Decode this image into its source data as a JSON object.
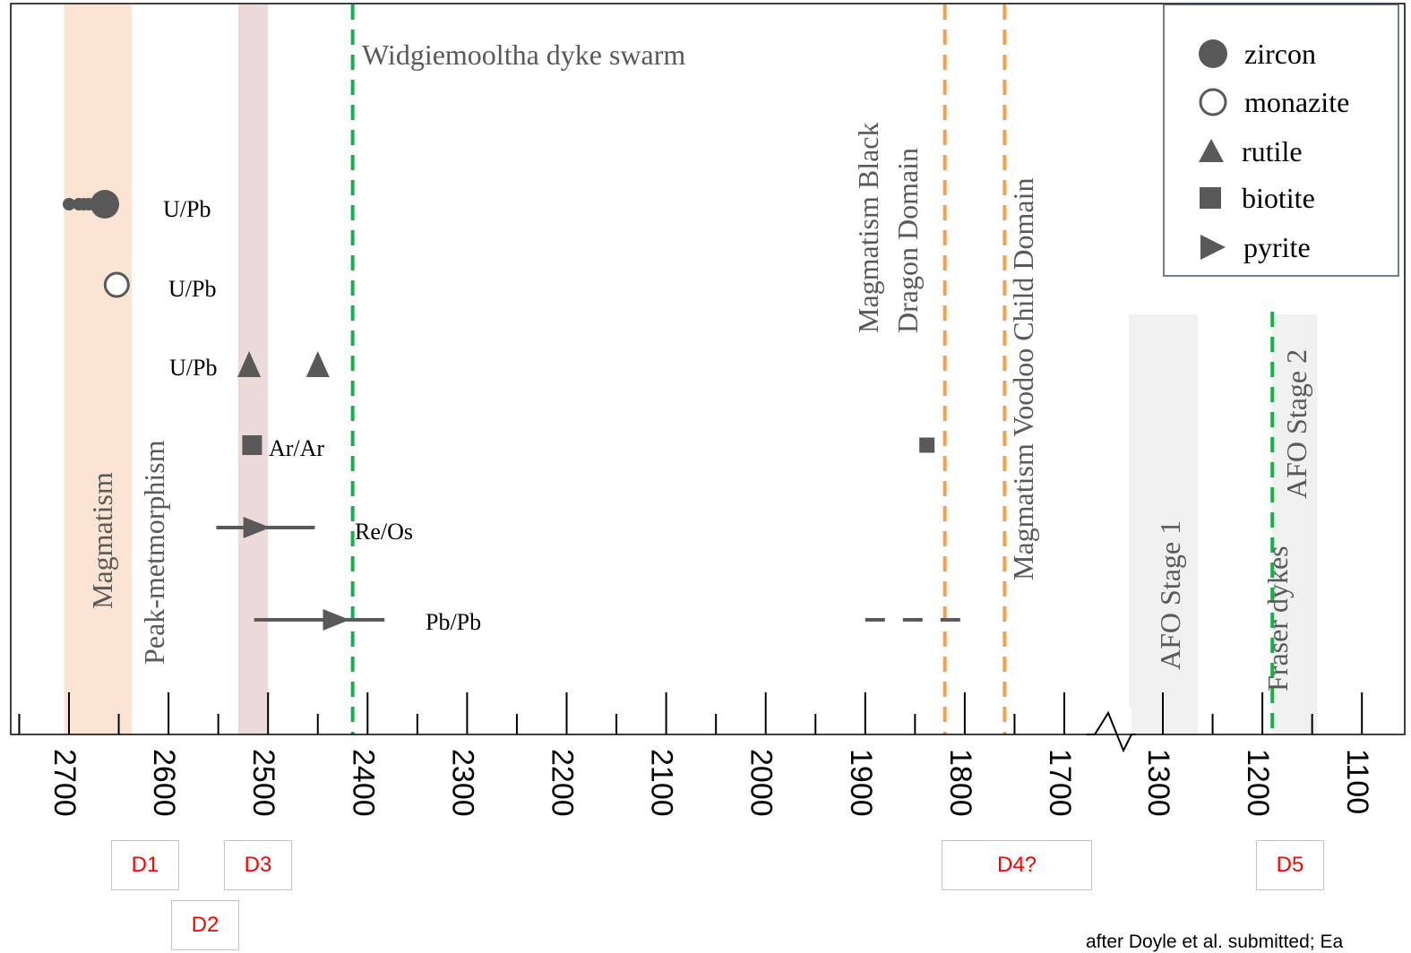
{
  "chart_data": {
    "type": "scatter",
    "title": "",
    "xlabel": "",
    "ylabel": "",
    "x_axis": {
      "direction": "reversed",
      "broken": true,
      "break_between": [
        1700,
        1300
      ],
      "ticks": [
        "2700",
        "2600",
        "2500",
        "2400",
        "2300",
        "2200",
        "2100",
        "2000",
        "1900",
        "1800",
        "1700",
        "1300",
        "1200",
        "1100"
      ]
    },
    "bands": [
      {
        "label": "Magmatism",
        "from": 2705,
        "to": 2637,
        "color": "#fce4d4"
      },
      {
        "label": "Peak-metmorphism",
        "from": 2530,
        "to": 2500,
        "color": "#ecdada"
      },
      {
        "label": "AFO Stage 1",
        "from": 1334,
        "to": 1265,
        "color": "#f0f0f0"
      },
      {
        "label": "AFO Stage 2",
        "from": 1190,
        "to": 1145,
        "color": "#f0f0f0"
      }
    ],
    "vlines": [
      {
        "label": "Widgiemooltha dyke swarm",
        "x": 2415,
        "color": "#18b04a"
      },
      {
        "label": "Magmatism Black Dragon Domain",
        "x": 1820,
        "color": "#f5a04a"
      },
      {
        "label": "Magmatism Voodoo Child Domain",
        "x": 1760,
        "color": "#f5a04a"
      },
      {
        "label": "Fraser dykes",
        "x": 1190,
        "color": "#18b04a"
      }
    ],
    "series": [
      {
        "name": "zircon",
        "symbol": "filled-circle",
        "method": "U/Pb",
        "row": 1,
        "x": [
          2700,
          2690,
          2685,
          2680,
          2675,
          2664
        ]
      },
      {
        "name": "monazite",
        "symbol": "open-circle",
        "method": "U/Pb",
        "row": 2,
        "x": [
          2652
        ]
      },
      {
        "name": "rutile",
        "symbol": "triangle",
        "method": "U/Pb",
        "row": 3,
        "x": [
          2519,
          2450
        ]
      },
      {
        "name": "biotite",
        "symbol": "square",
        "method": "Ar/Ar",
        "row": 4,
        "x": [
          2516,
          1838
        ]
      },
      {
        "name": "pyrite",
        "symbol": "right-triangle",
        "method": "Re/Os",
        "row": 5,
        "x": [
          2505
        ],
        "range": [
          2552,
          2453
        ]
      },
      {
        "name": "pyrite",
        "symbol": "right-triangle",
        "method": "Pb/Pb",
        "row": 6,
        "x": [
          2425
        ],
        "range": [
          2514,
          2383
        ]
      },
      {
        "name": "pyrite",
        "symbol": "dashed-range",
        "method": "Pb/Pb",
        "row": 6,
        "x": [],
        "range": [
          1900,
          1803
        ]
      }
    ],
    "legend": {
      "placement": "top-right",
      "entries": [
        "zircon",
        "monazite",
        "rutile",
        "biotite",
        "pyrite"
      ]
    }
  },
  "deformation_events": [
    {
      "label": "D1",
      "at": 2620
    },
    {
      "label": "D2",
      "at": 2560
    },
    {
      "label": "D3",
      "at": 2505
    },
    {
      "label": "D4?",
      "at": 1770
    },
    {
      "label": "D5",
      "at": 1170
    }
  ],
  "credit": "after Doyle et al. submitted; Ea"
}
